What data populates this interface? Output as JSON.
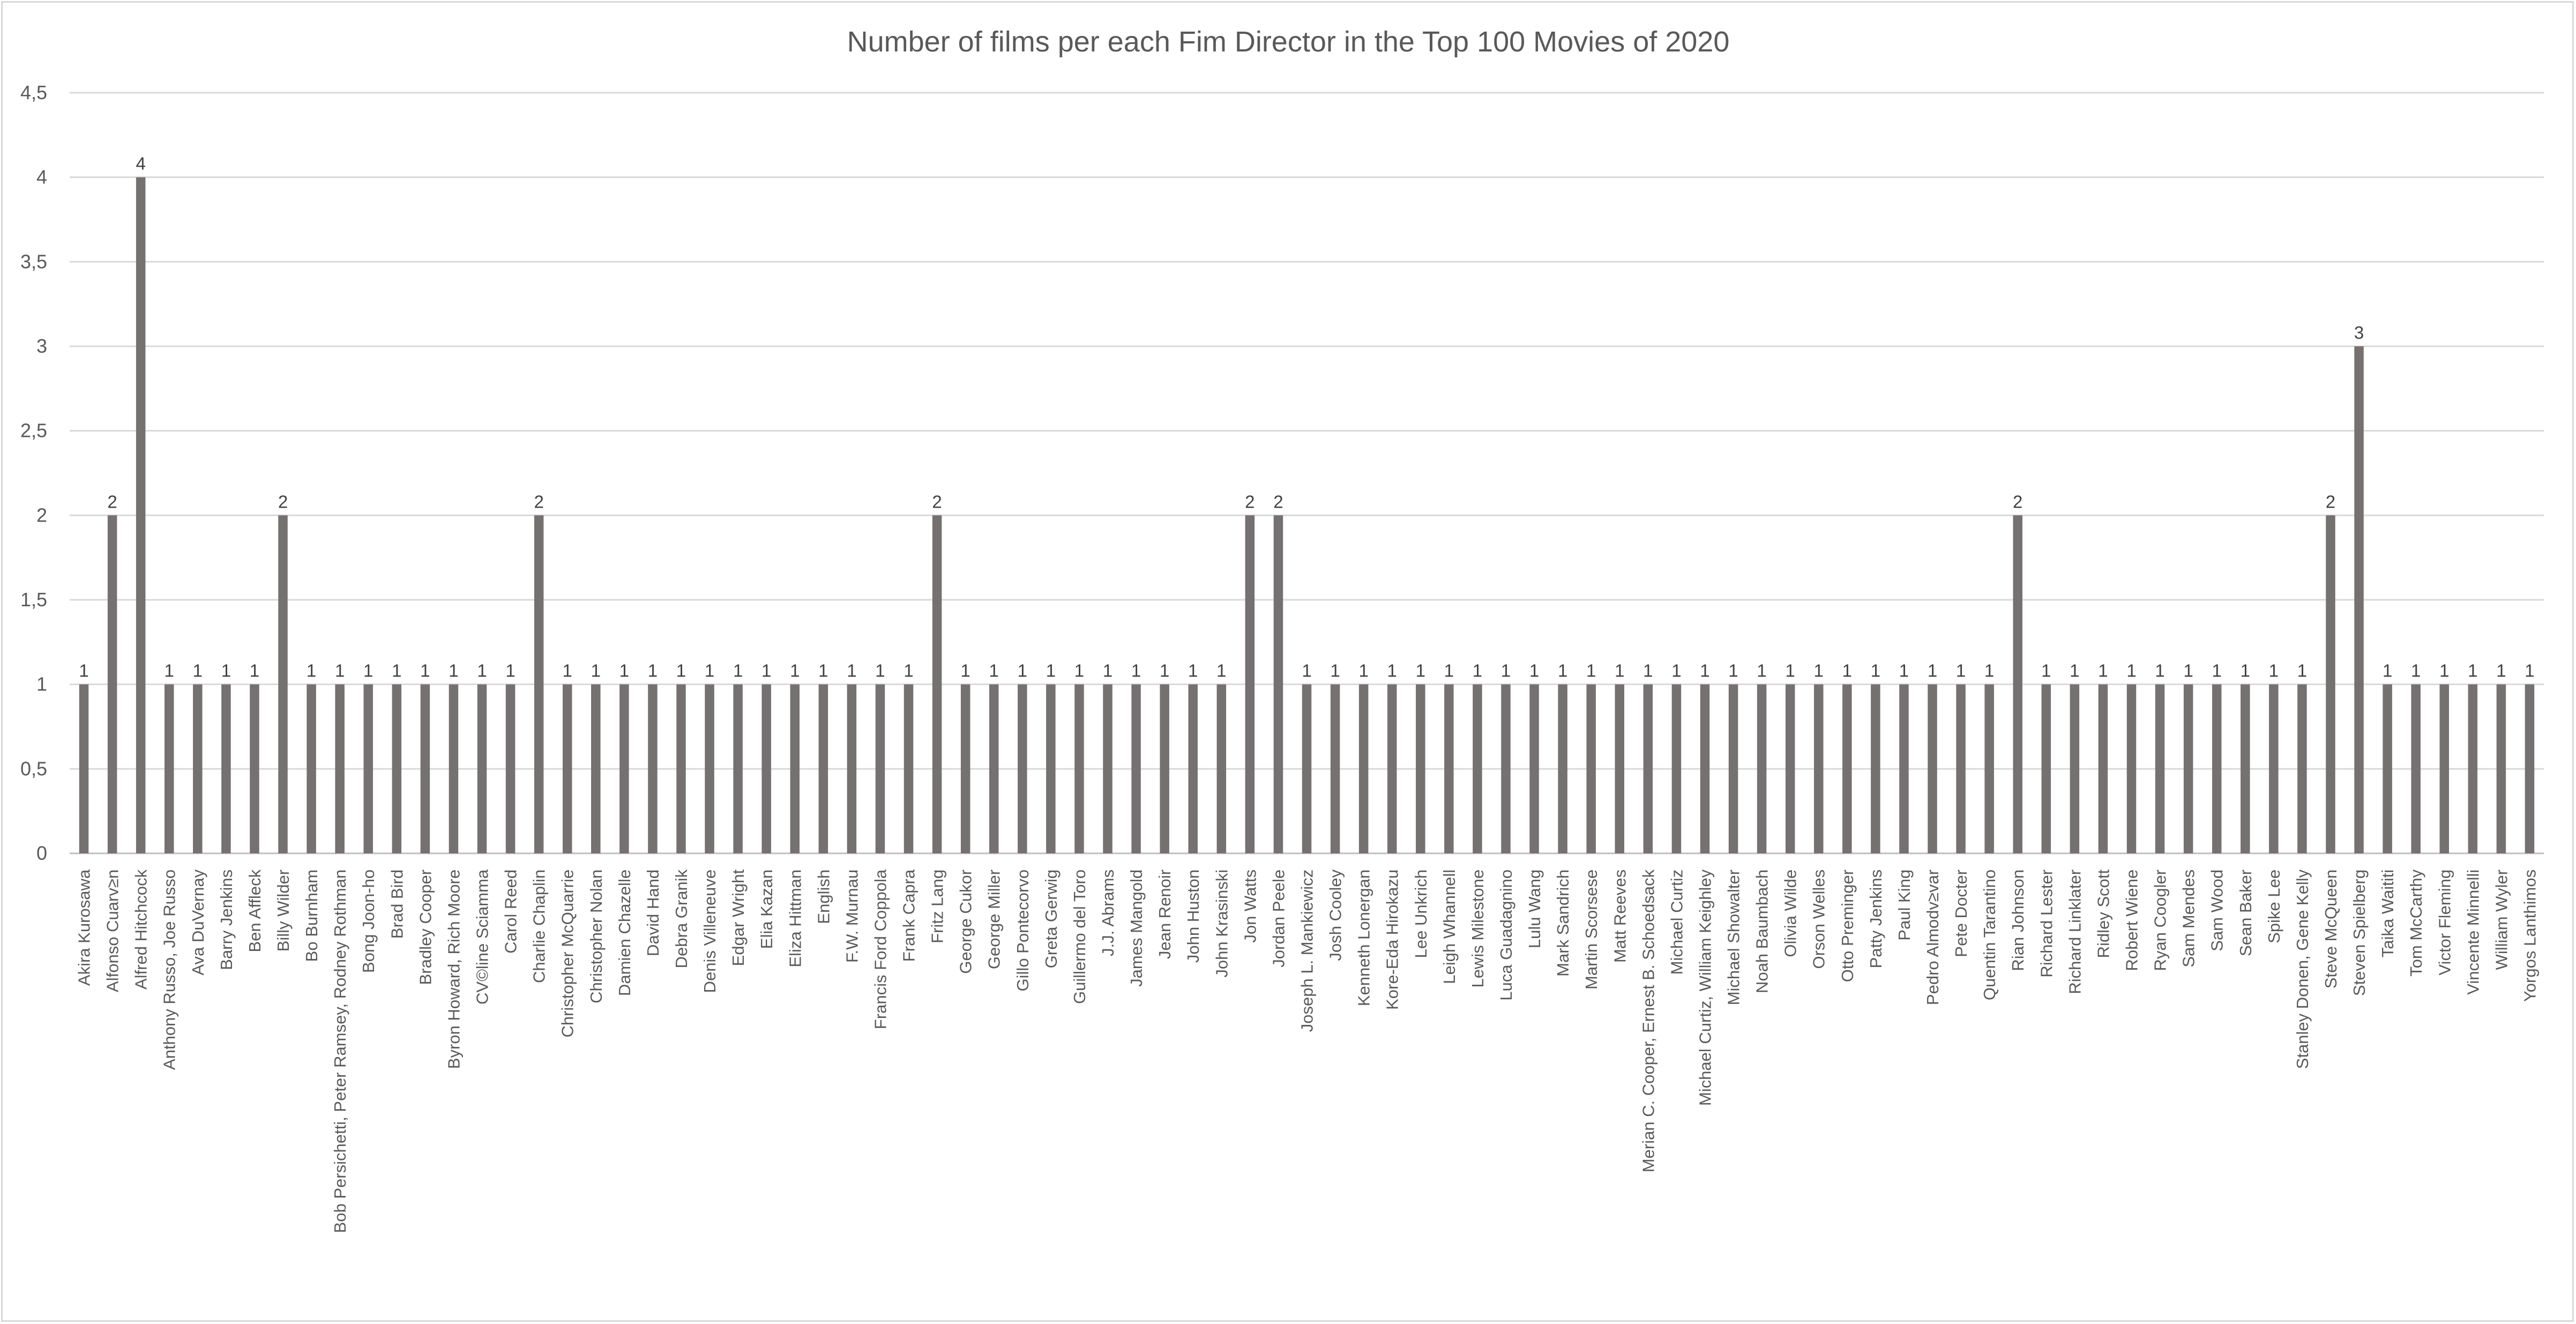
{
  "chart_data": {
    "type": "bar",
    "title": "Number of films per each Fim Director in the Top 100 Movies of 2020",
    "xlabel": "",
    "ylabel": "",
    "ylim": [
      0,
      4.5
    ],
    "yticks": [
      0,
      0.5,
      1,
      1.5,
      2,
      2.5,
      3,
      3.5,
      4,
      4.5
    ],
    "ytick_labels": [
      "0",
      "0,5",
      "1",
      "1,5",
      "2",
      "2,5",
      "3",
      "3,5",
      "4",
      "4,5"
    ],
    "grid": true,
    "legend": "none",
    "bar_color": "#767171",
    "categories": [
      "Akira Kurosawa",
      "Alfonso Cuarv≥n",
      "Alfred Hitchcock",
      "Anthony Russo, Joe Russo",
      "Ava DuVernay",
      "Barry Jenkins",
      "Ben Affleck",
      "Billy Wilder",
      "Bo Burnham",
      "Bob Persichetti, Peter Ramsey, Rodney Rothman",
      "Bong Joon-ho",
      "Brad Bird",
      "Bradley Cooper",
      "Byron Howard, Rich Moore",
      "CV©line Sciamma",
      "Carol Reed",
      "Charlie Chaplin",
      "Christopher McQuarrie",
      "Christopher Nolan",
      "Damien Chazelle",
      "David Hand",
      "Debra Granik",
      "Denis Villeneuve",
      "Edgar Wright",
      "Elia Kazan",
      "Eliza Hittman",
      "English",
      "F.W. Murnau",
      "Francis Ford Coppola",
      "Frank Capra",
      "Fritz Lang",
      "George Cukor",
      "George Miller",
      "Gillo Pontecorvo",
      "Greta Gerwig",
      "Guillermo del Toro",
      "J.J. Abrams",
      "James Mangold",
      "Jean Renoir",
      "John Huston",
      "John Krasinski",
      "Jon Watts",
      "Jordan Peele",
      "Joseph L. Mankiewicz",
      "Josh Cooley",
      "Kenneth Lonergan",
      "Kore-Eda Hirokazu",
      "Lee Unkrich",
      "Leigh Whannell",
      "Lewis Milestone",
      "Luca Guadagnino",
      "Lulu Wang",
      "Mark Sandrich",
      "Martin Scorsese",
      "Matt Reeves",
      "Merian C. Cooper, Ernest B. Schoedsack",
      "Michael Curtiz",
      "Michael Curtiz, William Keighley",
      "Michael Showalter",
      "Noah Baumbach",
      "Olivia Wilde",
      "Orson Welles",
      "Otto Preminger",
      "Patty Jenkins",
      "Paul King",
      "Pedro Almodv≥var",
      "Pete Docter",
      "Quentin Tarantino",
      "Rian Johnson",
      "Richard Lester",
      "Richard Linklater",
      "Ridley Scott",
      "Robert Wiene",
      "Ryan Coogler",
      "Sam Mendes",
      "Sam Wood",
      "Sean Baker",
      "Spike Lee",
      "Stanley Donen, Gene Kelly",
      "Steve McQueen",
      "Steven Spielberg",
      "Taika Waititi",
      "Tom McCarthy",
      "Victor Fleming",
      "Vincente Minnelli",
      "William Wyler",
      "Yorgos Lanthimos"
    ],
    "values": [
      1,
      2,
      4,
      1,
      1,
      1,
      1,
      2,
      1,
      1,
      1,
      1,
      1,
      1,
      1,
      1,
      2,
      1,
      1,
      1,
      1,
      1,
      1,
      1,
      1,
      1,
      1,
      1,
      1,
      1,
      2,
      1,
      1,
      1,
      1,
      1,
      1,
      1,
      1,
      1,
      1,
      2,
      2,
      1,
      1,
      1,
      1,
      1,
      1,
      1,
      1,
      1,
      1,
      1,
      1,
      1,
      1,
      1,
      1,
      1,
      1,
      1,
      1,
      1,
      1,
      1,
      1,
      1,
      2,
      1,
      1,
      1,
      1,
      1,
      1,
      1,
      1,
      1,
      1,
      2,
      3,
      1,
      1,
      1,
      1,
      1,
      1
    ]
  }
}
